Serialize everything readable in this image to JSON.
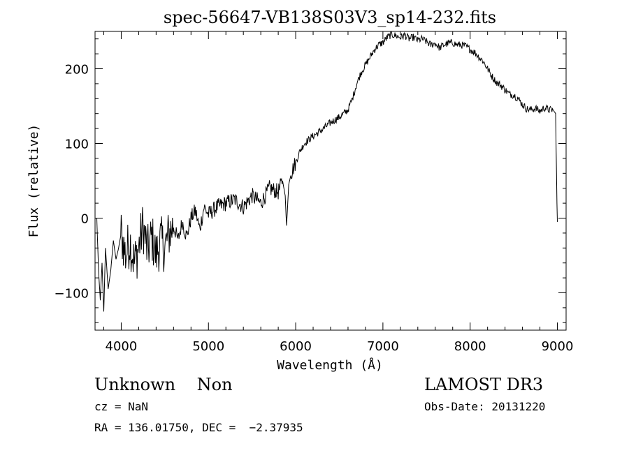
{
  "chart_data": {
    "type": "line",
    "title": "spec-56647-VB138S03V3_sp14-232.fits",
    "xlabel": "Wavelength (Å)",
    "ylabel": "Flux (relative)",
    "xlim": [
      3700,
      9100
    ],
    "ylim": [
      -150,
      250
    ],
    "xticks": [
      4000,
      5000,
      6000,
      7000,
      8000,
      9000
    ],
    "xtick_labels": [
      "4000",
      "5000",
      "6000",
      "7000",
      "8000",
      "9000"
    ],
    "yticks": [
      -100,
      0,
      100,
      200
    ],
    "ytick_labels": [
      "−100",
      "0",
      "100",
      "200"
    ],
    "grid": false,
    "series": [
      {
        "name": "spectrum",
        "x": [
          3720,
          3740,
          3760,
          3780,
          3800,
          3820,
          3850,
          3880,
          3910,
          3940,
          3970,
          4000,
          4050,
          4100,
          4150,
          4200,
          4250,
          4300,
          4350,
          4400,
          4450,
          4500,
          4550,
          4600,
          4650,
          4700,
          4750,
          4800,
          4850,
          4900,
          4950,
          5000,
          5100,
          5200,
          5300,
          5400,
          5500,
          5600,
          5700,
          5800,
          5850,
          5880,
          5895,
          5905,
          5920,
          5950,
          6000,
          6050,
          6100,
          6200,
          6300,
          6400,
          6500,
          6600,
          6650,
          6700,
          6750,
          6800,
          6850,
          6900,
          6950,
          7000,
          7050,
          7100,
          7150,
          7200,
          7250,
          7300,
          7350,
          7400,
          7450,
          7500,
          7550,
          7600,
          7650,
          7700,
          7750,
          7800,
          7850,
          7900,
          7950,
          8000,
          8050,
          8100,
          8150,
          8200,
          8250,
          8300,
          8350,
          8400,
          8450,
          8500,
          8550,
          8600,
          8650,
          8700,
          8750,
          8800,
          8850,
          8900,
          8950,
          8980,
          8995,
          9000
        ],
        "y": [
          0,
          -70,
          -110,
          -60,
          -125,
          -40,
          -95,
          -70,
          -30,
          -55,
          -40,
          -20,
          -50,
          -30,
          -60,
          -40,
          -10,
          -45,
          -25,
          -50,
          -30,
          -40,
          -20,
          -10,
          -30,
          -5,
          -25,
          0,
          10,
          -15,
          15,
          5,
          15,
          20,
          25,
          15,
          30,
          20,
          40,
          35,
          50,
          30,
          -10,
          10,
          45,
          60,
          75,
          90,
          100,
          110,
          118,
          128,
          135,
          145,
          160,
          180,
          195,
          205,
          215,
          225,
          232,
          235,
          242,
          246,
          244,
          242,
          245,
          240,
          242,
          238,
          240,
          236,
          232,
          234,
          228,
          232,
          234,
          235,
          232,
          232,
          230,
          226,
          222,
          216,
          210,
          200,
          190,
          182,
          178,
          172,
          166,
          165,
          160,
          152,
          146,
          145,
          147,
          143,
          148,
          145,
          145,
          140,
          20,
          -5
        ]
      }
    ]
  },
  "info": {
    "class_line": "Unknown    Non",
    "survey": "LAMOST DR3",
    "cz": "cz = NaN",
    "obs_date": "Obs-Date: 20131220",
    "coords": "RA = 136.01750, DEC =  −2.37935"
  }
}
